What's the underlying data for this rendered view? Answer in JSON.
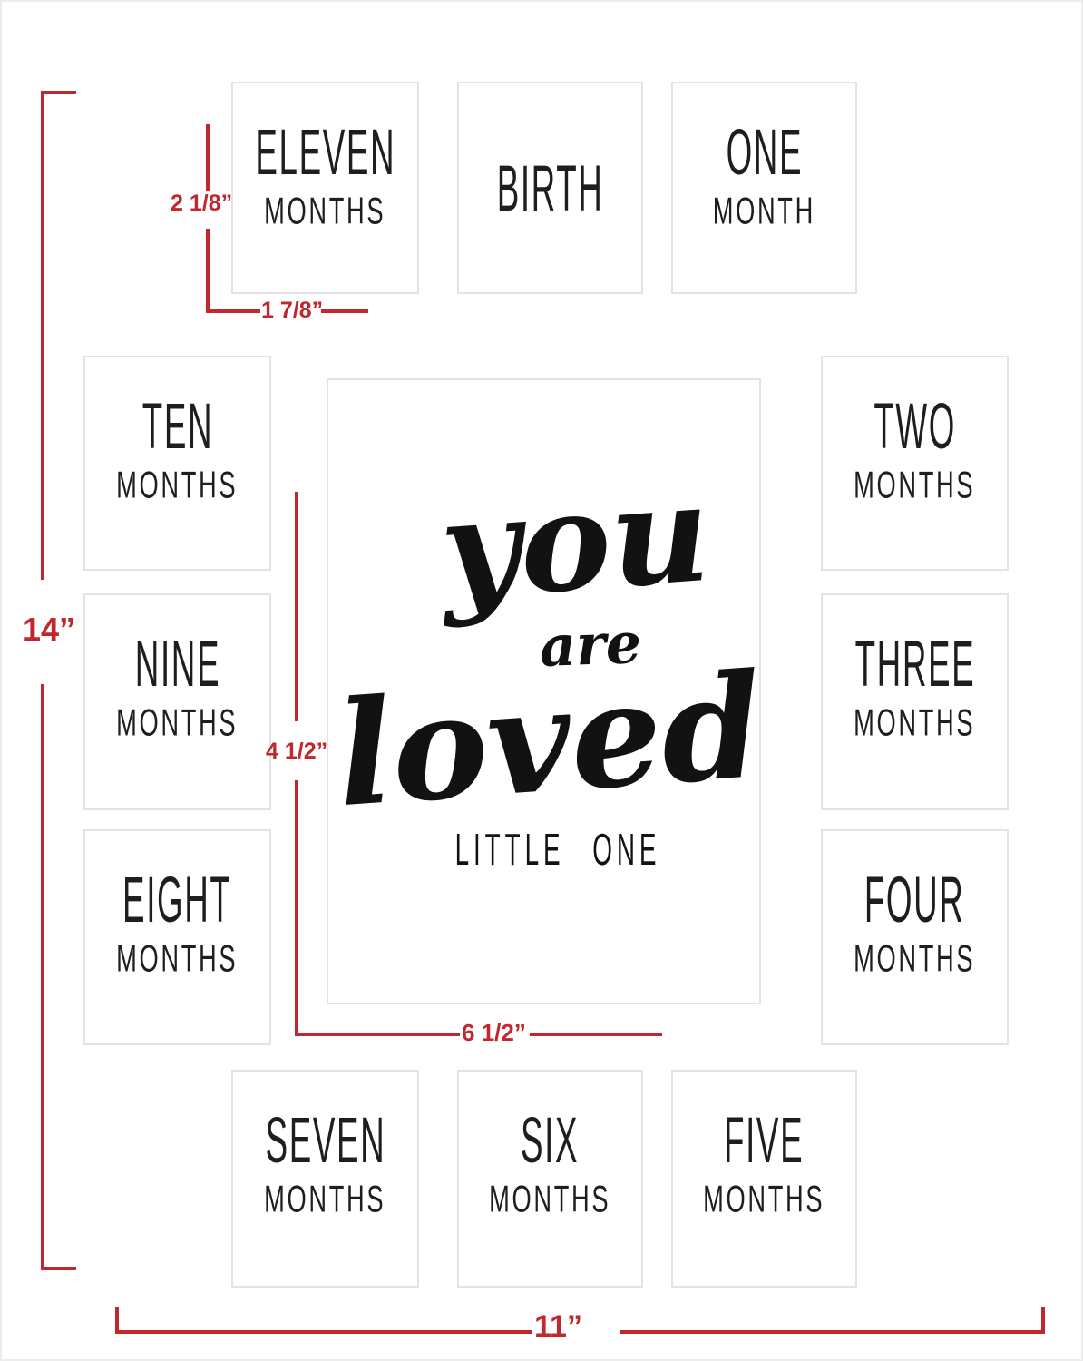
{
  "product_title": "11x14 baby first year milestone collage mat diagram",
  "dimensions": {
    "mat_height_label": "14”",
    "mat_width_label": "11”",
    "small_opening_height_label": "2 1/8”",
    "small_opening_width_label": "1 7/8”",
    "center_opening_height_label": "4 1/2”",
    "center_opening_width_label": "6 1/2”"
  },
  "center_art": {
    "word1": "you",
    "word2": "are",
    "word3": "loved",
    "subtitle": "LITTLE ONE"
  },
  "openings": [
    {
      "id": "eleven-months",
      "line1": "ELEVEN",
      "line2": "MONTHS"
    },
    {
      "id": "birth",
      "line1": "BIRTH"
    },
    {
      "id": "one-month",
      "line1": "ONE",
      "line2": "MONTH"
    },
    {
      "id": "ten-months",
      "line1": "TEN",
      "line2": "MONTHS"
    },
    {
      "id": "two-months",
      "line1": "TWO",
      "line2": "MONTHS"
    },
    {
      "id": "nine-months",
      "line1": "NINE",
      "line2": "MONTHS"
    },
    {
      "id": "three-months",
      "line1": "THREE",
      "line2": "MONTHS"
    },
    {
      "id": "eight-months",
      "line1": "EIGHT",
      "line2": "MONTHS"
    },
    {
      "id": "four-months",
      "line1": "FOUR",
      "line2": "MONTHS"
    },
    {
      "id": "seven-months",
      "line1": "SEVEN",
      "line2": "MONTHS"
    },
    {
      "id": "six-months",
      "line1": "SIX",
      "line2": "MONTHS"
    },
    {
      "id": "five-months",
      "line1": "FIVE",
      "line2": "MONTHS"
    }
  ],
  "colors": {
    "dimension_red": "#c1272d",
    "lettering": "#1e1e1e",
    "opening_border": "#e3e3e3",
    "mat_border": "#ececec",
    "background": "#ffffff"
  }
}
